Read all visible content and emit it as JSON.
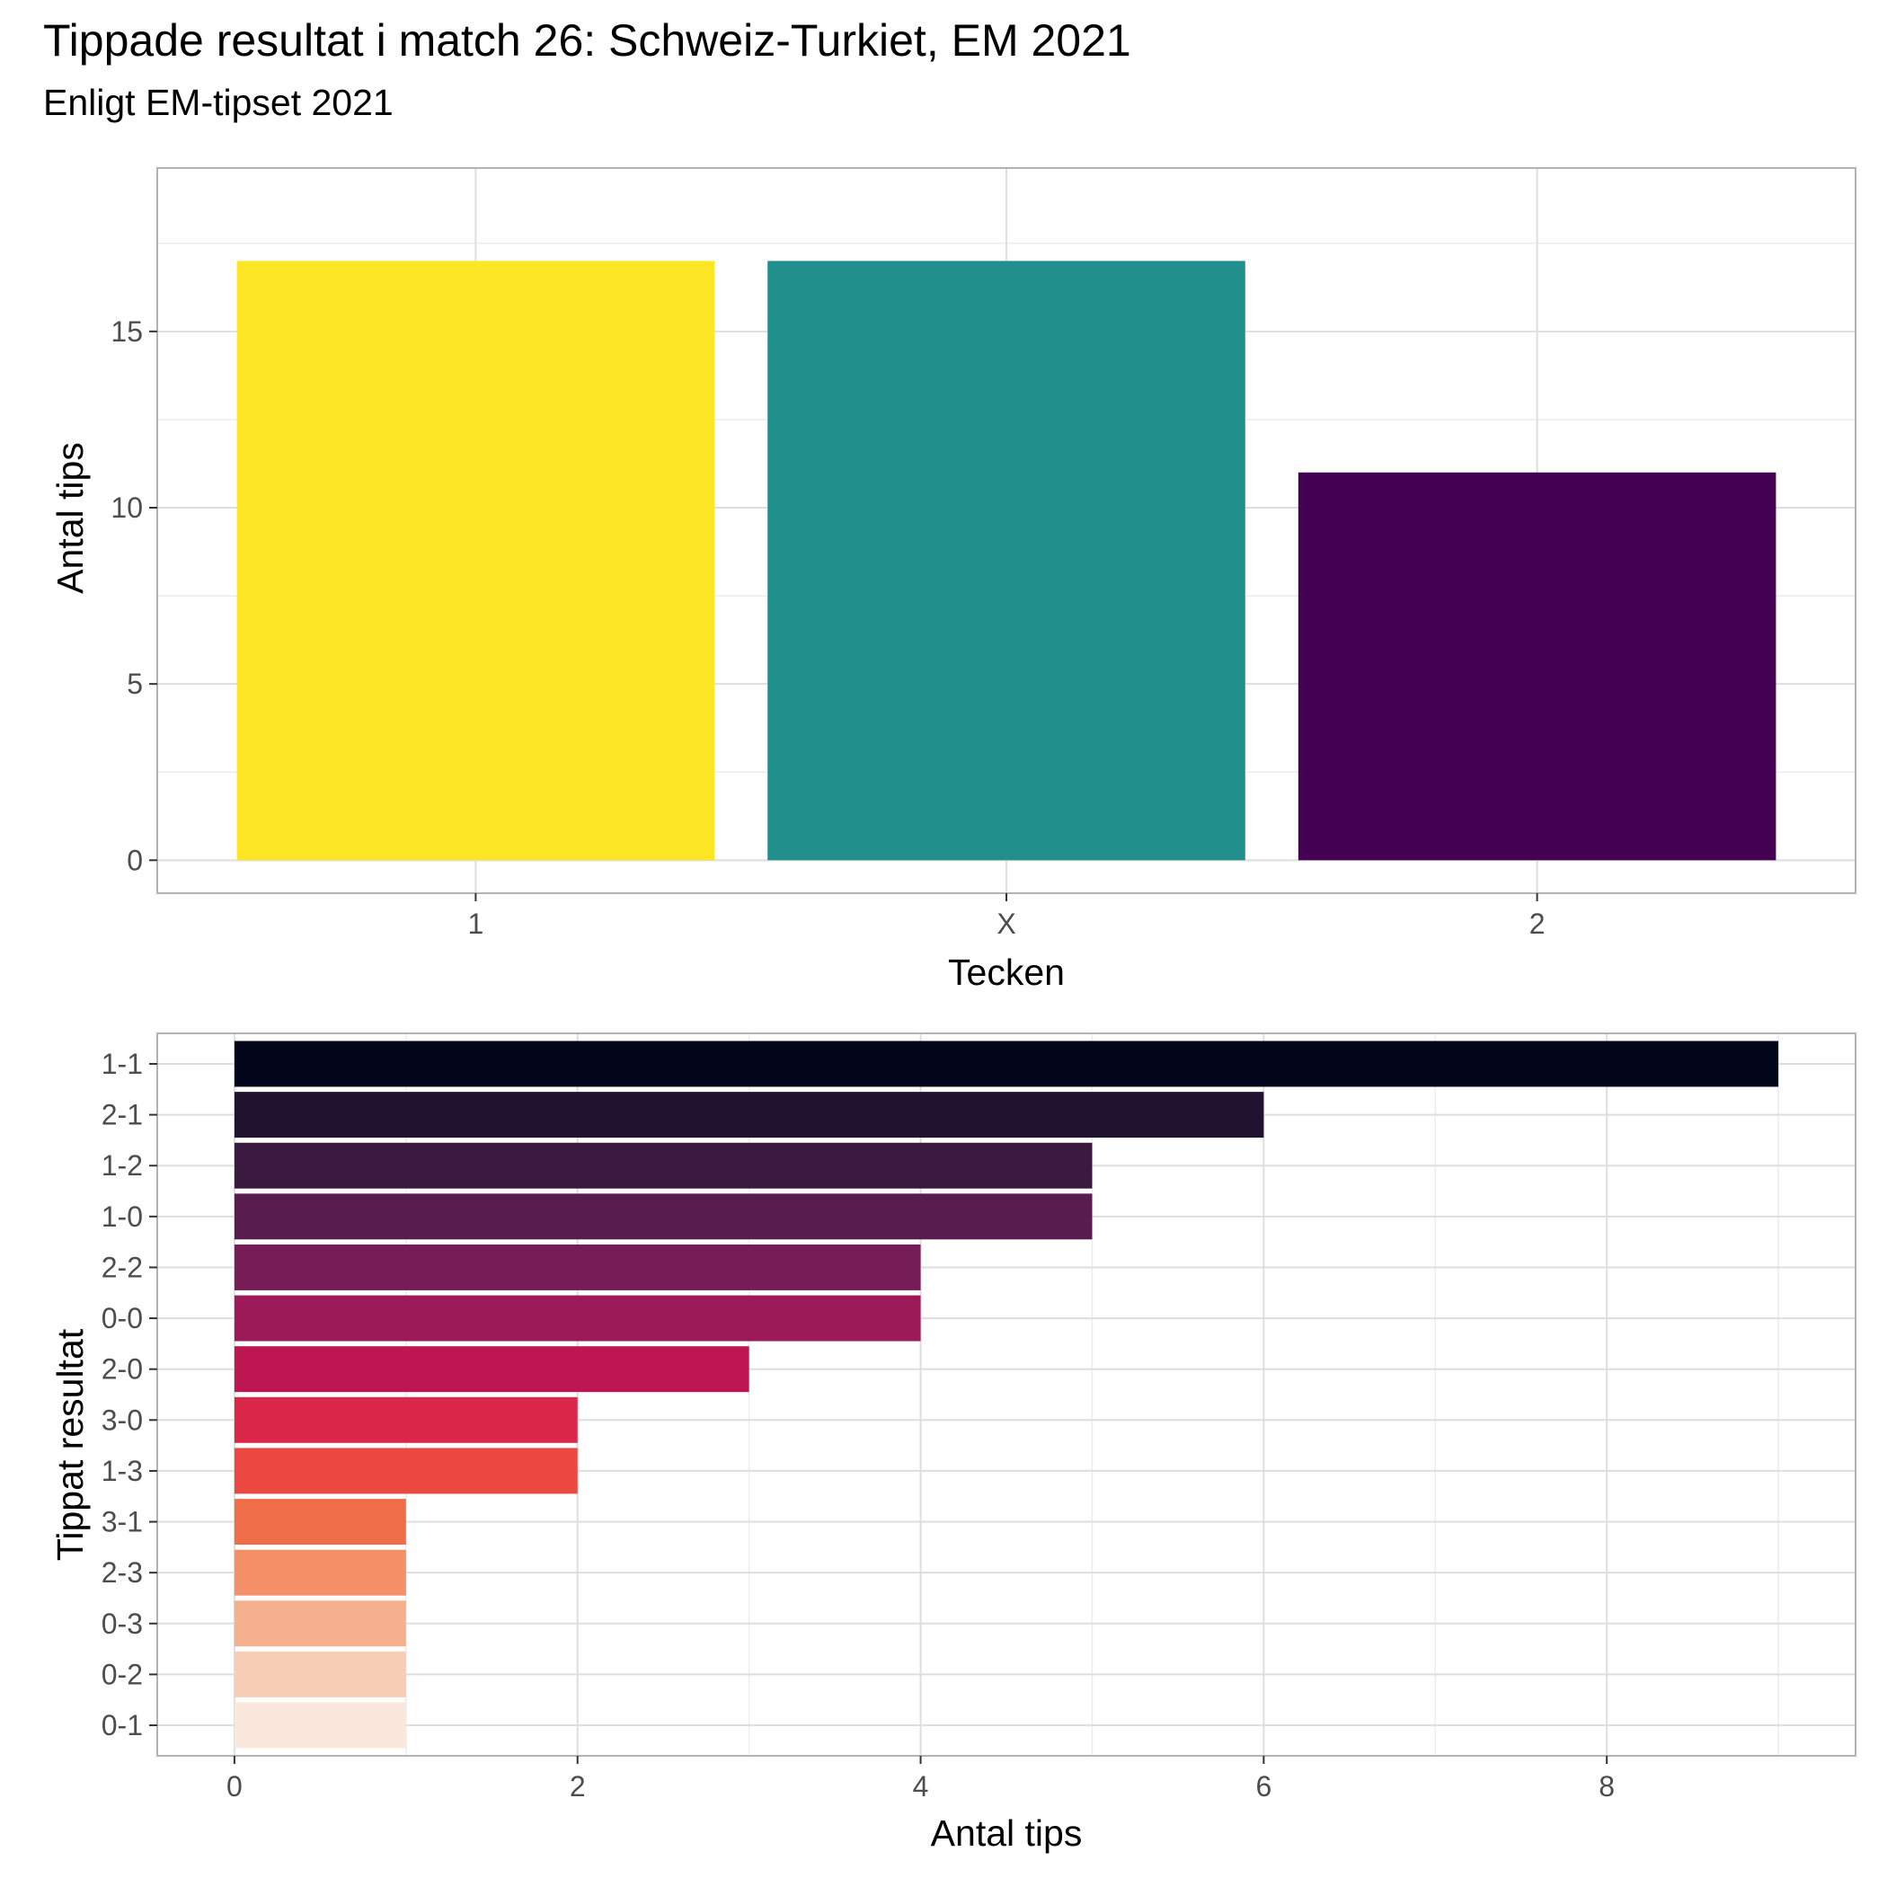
{
  "title": "Tippade resultat i match 26: Schweiz-Turkiet, EM 2021",
  "subtitle": "Enligt EM-tipset 2021",
  "chart_data": [
    {
      "type": "bar",
      "orientation": "vertical",
      "categories": [
        "1",
        "X",
        "2"
      ],
      "values": [
        17,
        17,
        11
      ],
      "colors": [
        "#FDE725",
        "#21908C",
        "#440154"
      ],
      "xlabel": "Tecken",
      "ylabel": "Antal tips",
      "ylim": [
        0,
        17
      ],
      "yticks": [
        "0",
        "5",
        "10",
        "15"
      ],
      "grid": true,
      "legend": "none"
    },
    {
      "type": "bar",
      "orientation": "horizontal",
      "categories": [
        "1-1",
        "2-1",
        "1-2",
        "1-0",
        "2-2",
        "0-0",
        "2-0",
        "3-0",
        "1-3",
        "3-1",
        "2-3",
        "0-3",
        "0-2",
        "0-1"
      ],
      "values": [
        9,
        6,
        5,
        5,
        4,
        4,
        3,
        2,
        2,
        1,
        1,
        1,
        1,
        1
      ],
      "colors": [
        "#03051A",
        "#1F1330",
        "#3B1A40",
        "#581C4F",
        "#761C56",
        "#9C1A57",
        "#BD1651",
        "#DA2749",
        "#EA4840",
        "#F06D4A",
        "#F48F67",
        "#F5B18D",
        "#F7CDB3",
        "#FAE8DC"
      ],
      "xlabel": "Antal tips",
      "ylabel": "Tippat resultat",
      "xlim": [
        0,
        9
      ],
      "xticks": [
        "0",
        "2",
        "4",
        "6",
        "8"
      ],
      "grid": true,
      "legend": "none"
    }
  ]
}
